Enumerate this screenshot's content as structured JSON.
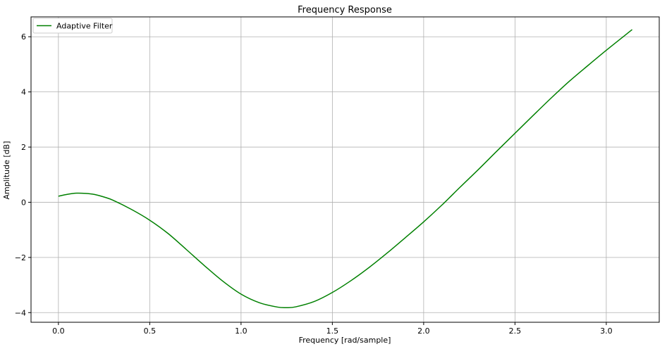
{
  "chart_data": {
    "type": "line",
    "title": "Frequency Response",
    "xlabel": "Frequency [rad/sample]",
    "ylabel": "Amplitude [dB]",
    "xlim": [
      -0.15,
      3.29
    ],
    "ylim": [
      -4.35,
      6.72
    ],
    "xticks": [
      0.0,
      0.5,
      1.0,
      1.5,
      2.0,
      2.5,
      3.0
    ],
    "xtick_labels": [
      "0.0",
      "0.5",
      "1.0",
      "1.5",
      "2.0",
      "2.5",
      "3.0"
    ],
    "yticks": [
      -4,
      -2,
      0,
      2,
      4,
      6
    ],
    "ytick_labels": [
      "−4",
      "−2",
      "0",
      "2",
      "4",
      "6"
    ],
    "grid": true,
    "legend_position": "top-left",
    "series": [
      {
        "name": "Adaptive Filter",
        "color": "#008000",
        "x": [
          0.0,
          0.05,
          0.1,
          0.15,
          0.2,
          0.25,
          0.3,
          0.4,
          0.5,
          0.6,
          0.7,
          0.8,
          0.9,
          1.0,
          1.1,
          1.2,
          1.25,
          1.3,
          1.4,
          1.5,
          1.6,
          1.7,
          1.8,
          1.9,
          2.0,
          2.1,
          2.2,
          2.3,
          2.4,
          2.5,
          2.6,
          2.7,
          2.8,
          2.9,
          3.0,
          3.1,
          3.1416
        ],
        "y": [
          0.22,
          0.29,
          0.33,
          0.32,
          0.28,
          0.19,
          0.07,
          -0.26,
          -0.65,
          -1.13,
          -1.71,
          -2.3,
          -2.86,
          -3.33,
          -3.64,
          -3.8,
          -3.82,
          -3.79,
          -3.6,
          -3.27,
          -2.85,
          -2.37,
          -1.84,
          -1.28,
          -0.71,
          -0.1,
          0.55,
          1.19,
          1.85,
          2.5,
          3.15,
          3.79,
          4.4,
          4.96,
          5.51,
          6.04,
          6.26
        ]
      }
    ]
  }
}
